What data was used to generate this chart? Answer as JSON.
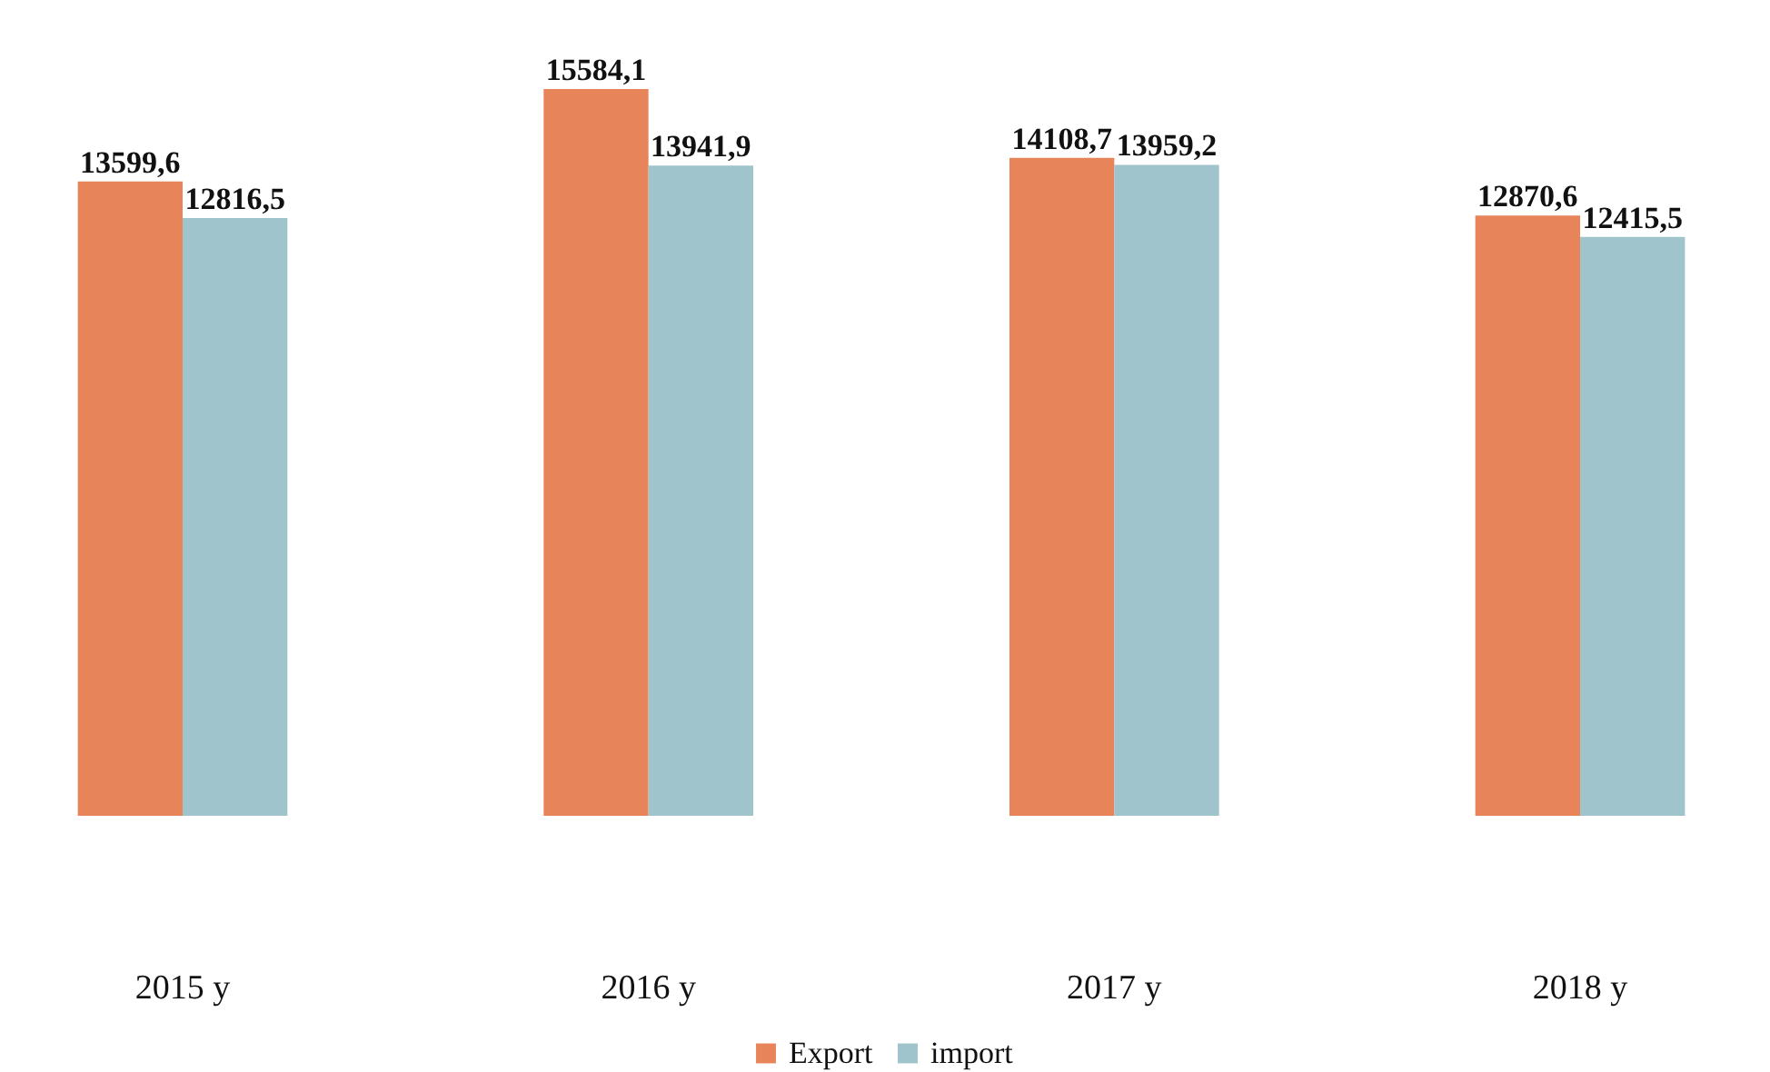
{
  "chart_data": {
    "type": "bar",
    "categories": [
      "2015 y",
      "2016 y",
      "2017 y",
      "2018 y"
    ],
    "series": [
      {
        "name": "Export",
        "color": "#e8845a",
        "values": [
          13599.6,
          15584.1,
          14108.7,
          12870.6
        ],
        "value_labels": [
          "13599,6",
          "15584,1",
          "14108,7",
          "12870,6"
        ]
      },
      {
        "name": "import",
        "color": "#9fc4cc",
        "values": [
          12816.5,
          13941.9,
          13959.2,
          12415.5
        ],
        "value_labels": [
          "12816,5",
          "13941,9",
          "13959,2",
          "12415,5"
        ]
      }
    ],
    "legend": "bottom"
  }
}
